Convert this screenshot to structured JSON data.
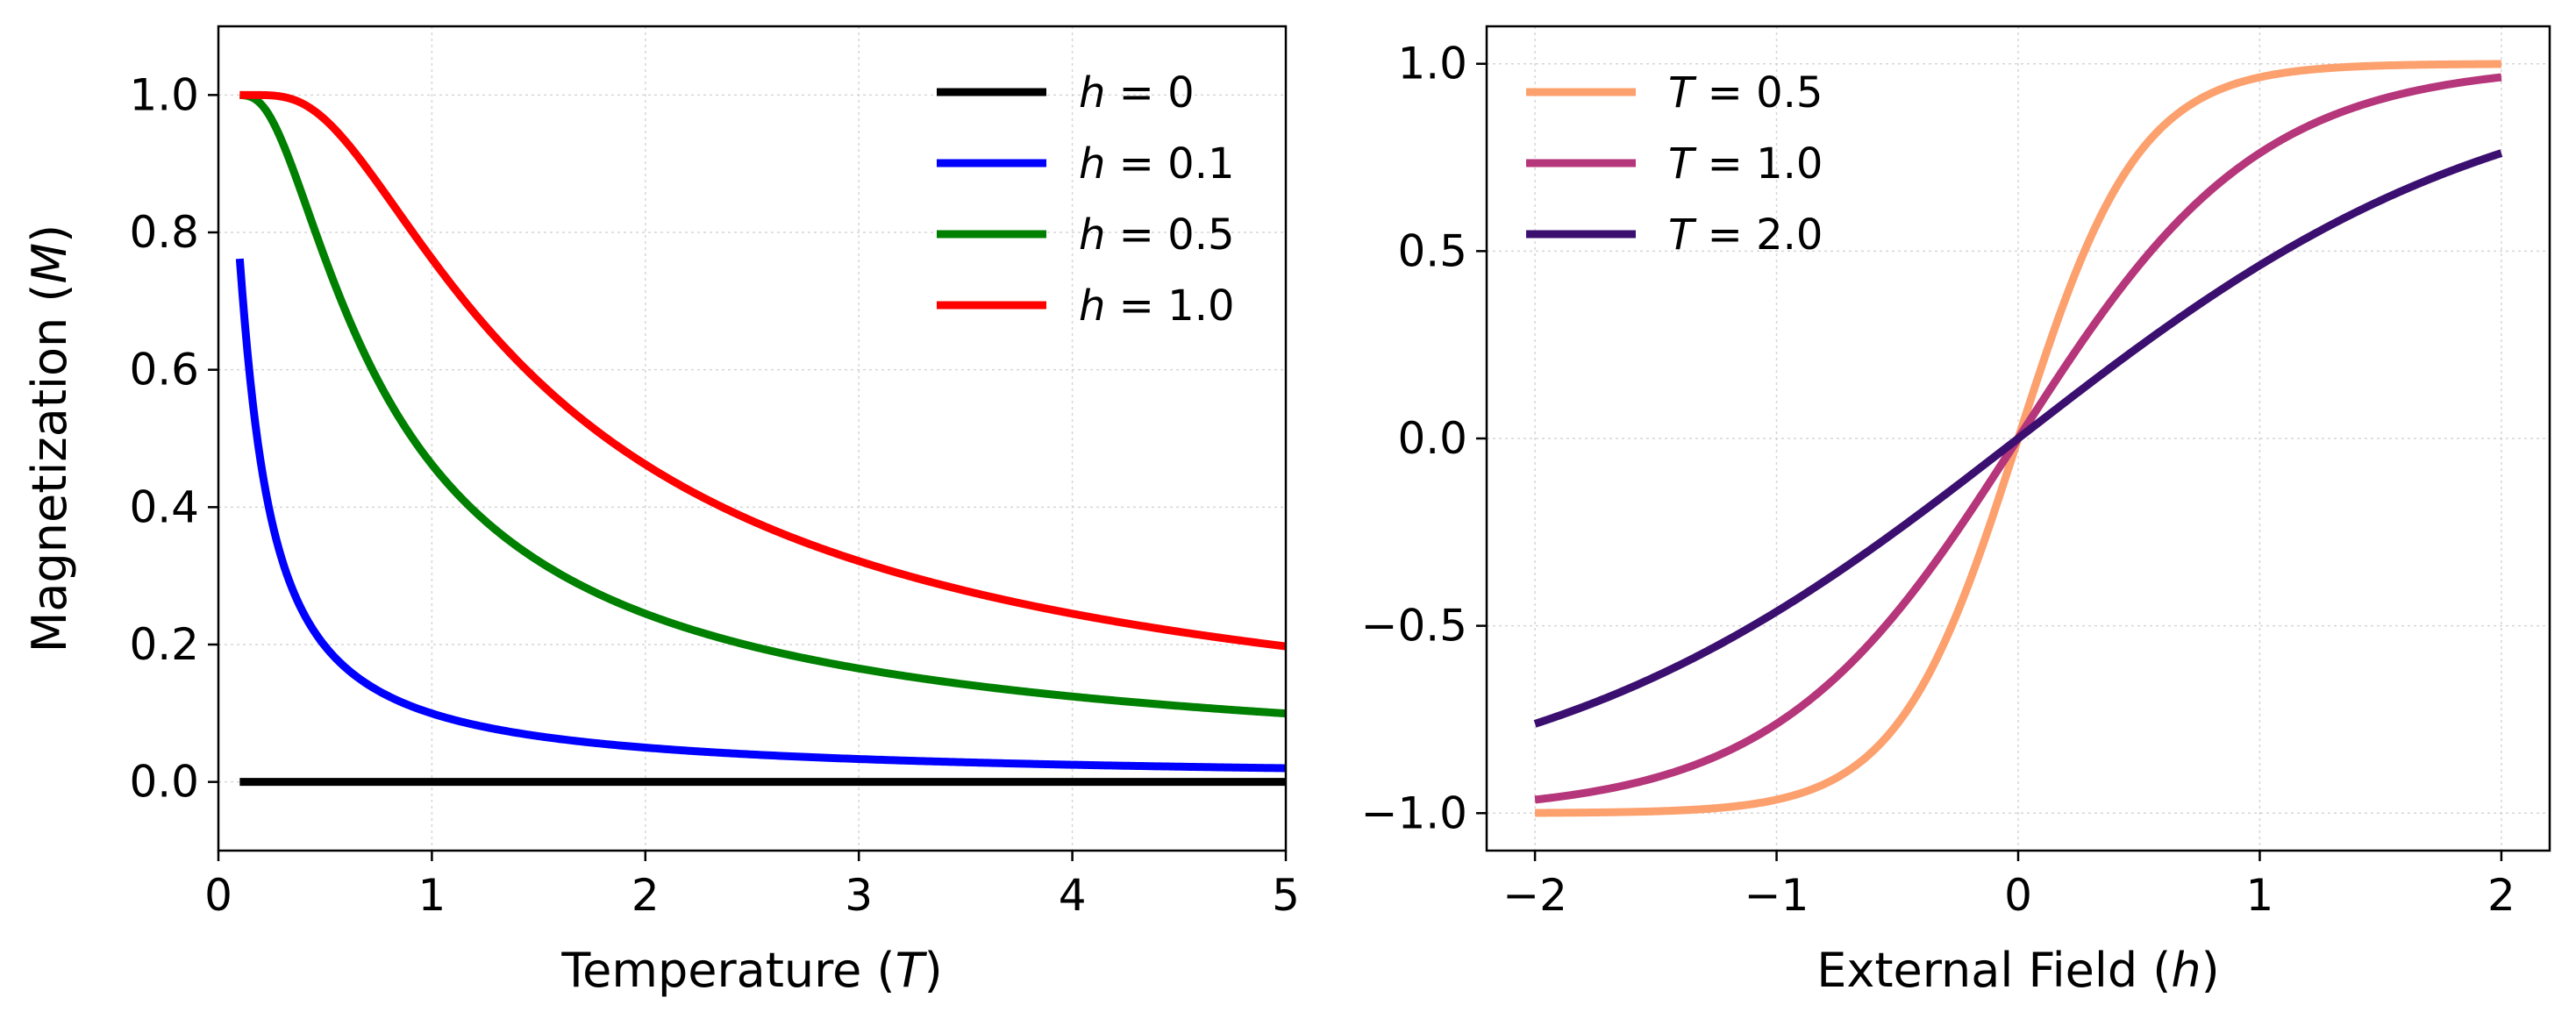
{
  "chart_data": [
    {
      "type": "line",
      "title": "",
      "xlabel": {
        "prefix": "Temperature (",
        "var": "T",
        "suffix": ")"
      },
      "ylabel": {
        "prefix": "Magnetization (",
        "var": "M",
        "suffix": ")"
      },
      "xlim": [
        0,
        5
      ],
      "ylim": [
        -0.1,
        1.1
      ],
      "xticks": [
        0,
        1,
        2,
        3,
        4,
        5
      ],
      "xtick_labels": [
        "0",
        "1",
        "2",
        "3",
        "4",
        "5"
      ],
      "yticks": [
        0.0,
        0.2,
        0.4,
        0.6,
        0.8,
        1.0
      ],
      "ytick_labels": [
        "0.0",
        "0.2",
        "0.4",
        "0.6",
        "0.8",
        "1.0"
      ],
      "grid": true,
      "legend_position": "upper right",
      "x_range": [
        0.1,
        5
      ],
      "series": [
        {
          "name": "h = 0",
          "var": "h",
          "value_label": "0",
          "param": 0,
          "color": "#000000",
          "x": [
            0.1,
            0.2,
            0.3,
            0.5,
            0.75,
            1,
            1.5,
            2,
            3,
            4,
            5
          ],
          "y": [
            0,
            0,
            0,
            0,
            0,
            0,
            0,
            0,
            0,
            0,
            0
          ]
        },
        {
          "name": "h = 0.1",
          "var": "h",
          "value_label": "0.1",
          "param": 0.1,
          "color": "#0000ff",
          "x": [
            0.1,
            0.15,
            0.2,
            0.25,
            0.3,
            0.4,
            0.5,
            0.6,
            0.75,
            1,
            1.5,
            2,
            3,
            4,
            5
          ],
          "y": [
            0.762,
            0.578,
            0.462,
            0.38,
            0.322,
            0.245,
            0.197,
            0.165,
            0.132,
            0.1,
            0.067,
            0.05,
            0.033,
            0.025,
            0.02
          ]
        },
        {
          "name": "h = 0.5",
          "var": "h",
          "value_label": "0.5",
          "param": 0.5,
          "color": "#008000",
          "x": [
            0.1,
            0.15,
            0.2,
            0.25,
            0.3,
            0.4,
            0.5,
            0.6,
            0.75,
            1,
            1.25,
            1.5,
            2,
            2.5,
            3,
            4,
            5
          ],
          "y": [
            1.0,
            0.998,
            0.987,
            0.964,
            0.931,
            0.848,
            0.762,
            0.682,
            0.582,
            0.462,
            0.38,
            0.322,
            0.245,
            0.197,
            0.165,
            0.124,
            0.1
          ]
        },
        {
          "name": "h = 1.0",
          "var": "h",
          "value_label": "1.0",
          "param": 1.0,
          "color": "#ff0000",
          "x": [
            0.1,
            0.2,
            0.3,
            0.4,
            0.5,
            0.6,
            0.75,
            1,
            1.25,
            1.5,
            2,
            2.5,
            3,
            3.5,
            4,
            4.5,
            5
          ],
          "y": [
            1.0,
            1.0,
            0.998,
            0.987,
            0.964,
            0.931,
            0.87,
            0.762,
            0.664,
            0.582,
            0.462,
            0.38,
            0.322,
            0.28,
            0.245,
            0.219,
            0.197
          ]
        }
      ]
    },
    {
      "type": "line",
      "title": "",
      "xlabel": {
        "prefix": "External Field (",
        "var": "h",
        "suffix": ")"
      },
      "ylabel": "",
      "xlim": [
        -2.2,
        2.2
      ],
      "ylim": [
        -1.1,
        1.1
      ],
      "xticks": [
        -2,
        -1,
        0,
        1,
        2
      ],
      "xtick_labels": [
        "−2",
        "−1",
        "0",
        "1",
        "2"
      ],
      "yticks": [
        -1.0,
        -0.5,
        0.0,
        0.5,
        1.0
      ],
      "ytick_labels": [
        "−1.0",
        "−0.5",
        "0.0",
        "0.5",
        "1.0"
      ],
      "grid": true,
      "legend_position": "upper left",
      "x_range": [
        -2,
        2
      ],
      "series": [
        {
          "name": "T = 0.5",
          "var": "T",
          "value_label": "0.5",
          "param": 0.5,
          "color": "#fca06e",
          "x": [
            -2,
            -1.5,
            -1,
            -0.75,
            -0.5,
            -0.25,
            0,
            0.25,
            0.5,
            0.75,
            1,
            1.5,
            2
          ],
          "y": [
            -0.999,
            -0.995,
            -0.964,
            -0.905,
            -0.762,
            -0.462,
            0,
            0.462,
            0.762,
            0.905,
            0.964,
            0.995,
            0.999
          ]
        },
        {
          "name": "T = 1.0",
          "var": "T",
          "value_label": "1.0",
          "param": 1.0,
          "color": "#b5367a",
          "x": [
            -2,
            -1.5,
            -1,
            -0.75,
            -0.5,
            -0.25,
            0,
            0.25,
            0.5,
            0.75,
            1,
            1.5,
            2
          ],
          "y": [
            -0.964,
            -0.905,
            -0.762,
            -0.635,
            -0.462,
            -0.245,
            0,
            0.245,
            0.462,
            0.635,
            0.762,
            0.905,
            0.964
          ]
        },
        {
          "name": "T = 2.0",
          "var": "T",
          "value_label": "2.0",
          "param": 2.0,
          "color": "#3b0f6f",
          "x": [
            -2,
            -1.5,
            -1,
            -0.5,
            0,
            0.5,
            1,
            1.5,
            2
          ],
          "y": [
            -0.762,
            -0.635,
            -0.462,
            -0.245,
            0,
            0.245,
            0.462,
            0.635,
            0.762
          ]
        }
      ]
    }
  ]
}
